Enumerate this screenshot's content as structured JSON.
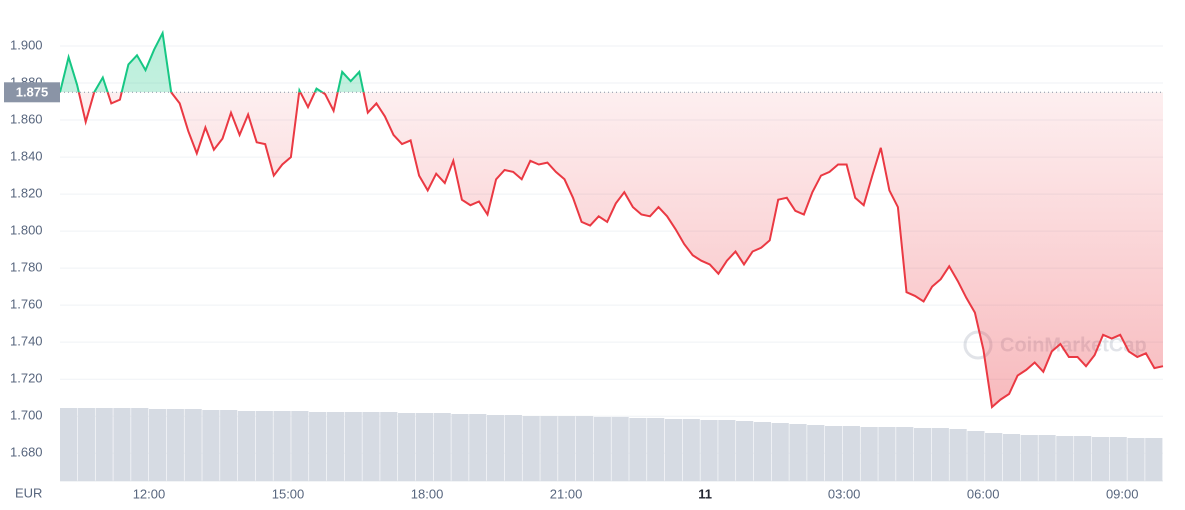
{
  "chart_data": {
    "type": "line",
    "currency": "EUR",
    "watermark": "CoinMarketCap",
    "ylim": [
      1.665,
      1.92
    ],
    "yticks": [
      {
        "value": 1.68,
        "label": "1.680"
      },
      {
        "value": 1.7,
        "label": "1.700"
      },
      {
        "value": 1.72,
        "label": "1.720"
      },
      {
        "value": 1.74,
        "label": "1.740"
      },
      {
        "value": 1.76,
        "label": "1.760"
      },
      {
        "value": 1.78,
        "label": "1.780"
      },
      {
        "value": 1.8,
        "label": "1.800"
      },
      {
        "value": 1.82,
        "label": "1.820"
      },
      {
        "value": 1.84,
        "label": "1.840"
      },
      {
        "value": 1.86,
        "label": "1.860"
      },
      {
        "value": 1.88,
        "label": "1.880"
      },
      {
        "value": 1.9,
        "label": "1.900"
      }
    ],
    "xlim": [
      10.08,
      33.88
    ],
    "xticks": [
      {
        "value": 12,
        "label": "12:00"
      },
      {
        "value": 15,
        "label": "15:00"
      },
      {
        "value": 18,
        "label": "18:00"
      },
      {
        "value": 21,
        "label": "21:00"
      },
      {
        "value": 24,
        "label": "11"
      },
      {
        "value": 27,
        "label": "03:00"
      },
      {
        "value": 30,
        "label": "06:00"
      },
      {
        "value": 33,
        "label": "09:00"
      }
    ],
    "grid": true,
    "reference": {
      "value": 1.875,
      "label": "1.875"
    },
    "color_above": "#16c784",
    "color_below": "#ea3943",
    "values": [
      1.875,
      1.894,
      1.879,
      1.859,
      1.875,
      1.883,
      1.869,
      1.871,
      1.89,
      1.895,
      1.887,
      1.898,
      1.907,
      1.875,
      1.869,
      1.854,
      1.842,
      1.856,
      1.844,
      1.85,
      1.864,
      1.852,
      1.863,
      1.848,
      1.847,
      1.83,
      1.836,
      1.84,
      1.876,
      1.867,
      1.877,
      1.874,
      1.865,
      1.886,
      1.881,
      1.886,
      1.864,
      1.869,
      1.862,
      1.852,
      1.847,
      1.849,
      1.83,
      1.822,
      1.831,
      1.826,
      1.838,
      1.817,
      1.814,
      1.816,
      1.809,
      1.828,
      1.833,
      1.832,
      1.828,
      1.838,
      1.836,
      1.837,
      1.832,
      1.828,
      1.818,
      1.805,
      1.803,
      1.808,
      1.805,
      1.815,
      1.821,
      1.813,
      1.809,
      1.808,
      1.813,
      1.808,
      1.801,
      1.793,
      1.787,
      1.784,
      1.782,
      1.777,
      1.784,
      1.789,
      1.782,
      1.789,
      1.791,
      1.795,
      1.817,
      1.818,
      1.811,
      1.809,
      1.821,
      1.83,
      1.832,
      1.836,
      1.836,
      1.818,
      1.814,
      1.83,
      1.845,
      1.822,
      1.813,
      1.767,
      1.765,
      1.762,
      1.77,
      1.774,
      1.781,
      1.773,
      1.764,
      1.756,
      1.736,
      1.705,
      1.709,
      1.712,
      1.722,
      1.725,
      1.729,
      1.724,
      1.735,
      1.739,
      1.732,
      1.732,
      1.727,
      1.733,
      1.744,
      1.742,
      1.744,
      1.735,
      1.732,
      1.734,
      1.726,
      1.727
    ],
    "volume": {
      "color": "#d6dbe3",
      "values": [
        73,
        73,
        73,
        73,
        73,
        72,
        72,
        72,
        71,
        71,
        70,
        70,
        70,
        70,
        69,
        69,
        69,
        69,
        69,
        68,
        68,
        68,
        67,
        67,
        66,
        66,
        65,
        65,
        65,
        65,
        64,
        64,
        63,
        63,
        62,
        62,
        61,
        61,
        60,
        59,
        58,
        57,
        56,
        55,
        55,
        54,
        54,
        54,
        53,
        53,
        52,
        50,
        48,
        47,
        46,
        46,
        45,
        45,
        44,
        44,
        43,
        43
      ]
    }
  }
}
